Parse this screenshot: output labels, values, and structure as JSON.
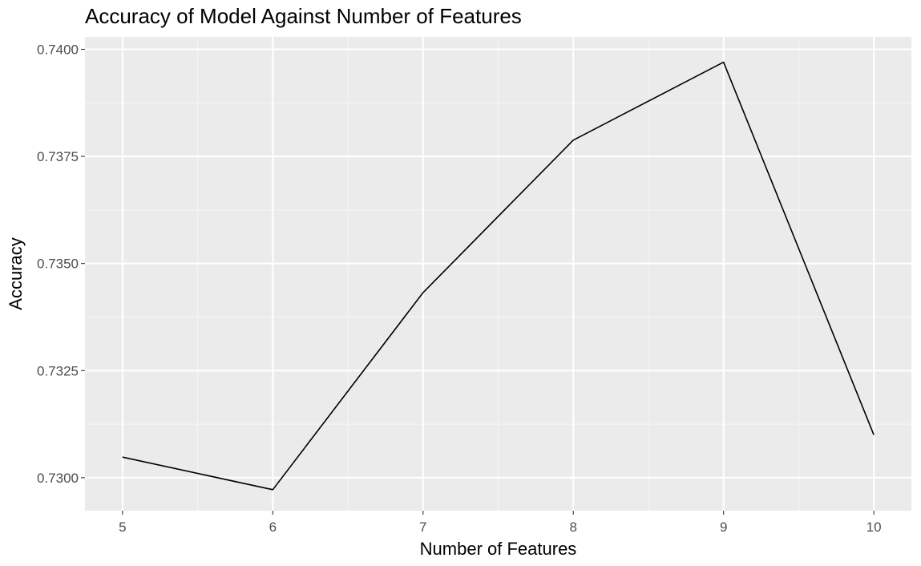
{
  "chart_data": {
    "type": "line",
    "title": "Accuracy of Model Against Number of Features",
    "xlabel": "Number of Features",
    "ylabel": "Accuracy",
    "x": [
      5,
      6,
      7,
      8,
      9,
      10
    ],
    "y": [
      0.73048,
      0.72972,
      0.73432,
      0.73788,
      0.7397,
      0.731
    ],
    "xlim": [
      4.75,
      10.25
    ],
    "ylim": [
      0.72923,
      0.74029
    ],
    "x_ticks": [
      5,
      6,
      7,
      8,
      9,
      10
    ],
    "x_tick_labels": [
      "5",
      "6",
      "7",
      "8",
      "9",
      "10"
    ],
    "y_ticks": [
      0.73,
      0.7325,
      0.735,
      0.7375,
      0.74
    ],
    "y_tick_labels": [
      "0.7300",
      "0.7325",
      "0.7350",
      "0.7375",
      "0.7400"
    ],
    "grid": true,
    "legend": "none",
    "colors": {
      "panel_background": "#ebebeb",
      "grid_major": "#ffffff",
      "grid_minor": "#f5f5f5",
      "line": "#000000",
      "tick_text": "#4d4d4d"
    }
  }
}
